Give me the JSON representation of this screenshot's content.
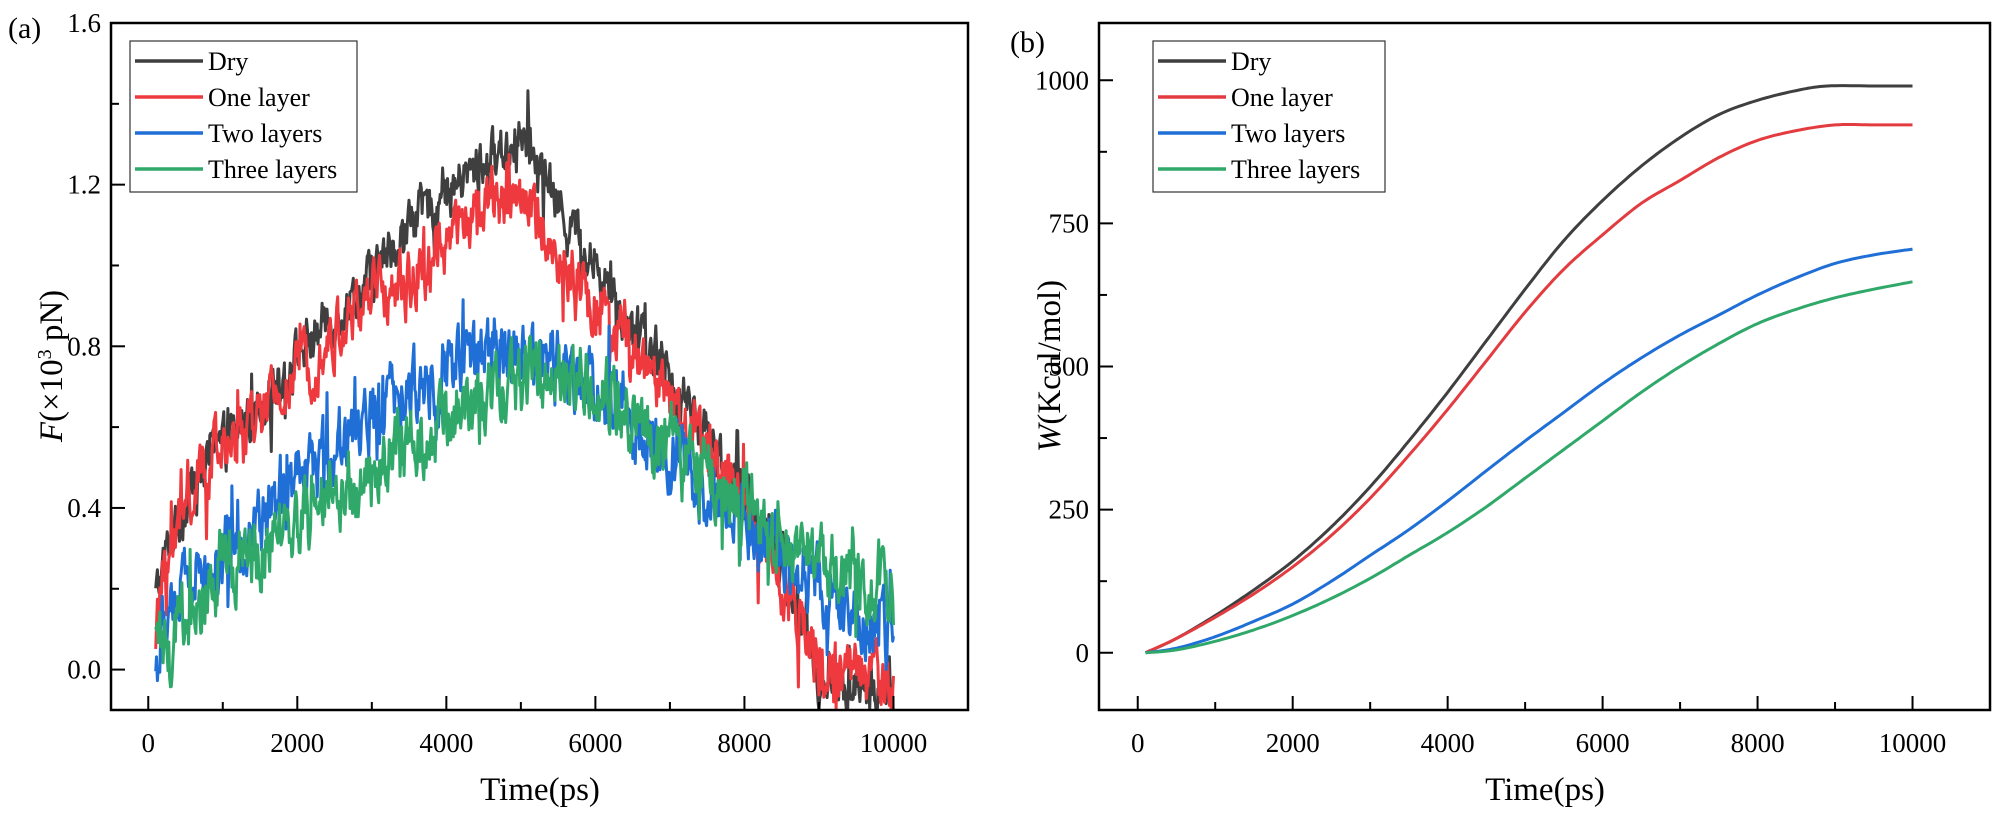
{
  "chart_data": [
    {
      "panel_label": "(a)",
      "type": "line",
      "title": "",
      "xlabel": "Time(ps)",
      "ylabel_italic": "F",
      "ylabel_rest": "(×10",
      "ylabel_sup": "3",
      "ylabel_end": " pN)",
      "xlim": [
        -500,
        11000
      ],
      "ylim": [
        -0.1,
        1.6
      ],
      "xticks": [
        0,
        2000,
        4000,
        6000,
        8000,
        10000
      ],
      "xtick_labels": [
        "0",
        "2000",
        "4000",
        "6000",
        "8000",
        "10000"
      ],
      "xminor": [
        1000,
        3000,
        5000,
        7000,
        9000
      ],
      "yticks": [
        0.0,
        0.4,
        0.8,
        1.2,
        1.6
      ],
      "ytick_labels": [
        "0.0",
        "0.4",
        "0.8",
        "1.2",
        "1.6"
      ],
      "yminor": [
        0.2,
        0.6,
        1.0,
        1.4
      ],
      "grid": false,
      "legend_position": "top-left",
      "noisy": true,
      "series": [
        {
          "name": "Dry",
          "color": "#3f3f3f",
          "noise": 0.05,
          "x": [
            100,
            300,
            600,
            1000,
            1500,
            2000,
            2500,
            3000,
            3500,
            4000,
            4500,
            5000,
            5500,
            6000,
            6500,
            7000,
            7500,
            8000,
            8500,
            8900,
            9000,
            9500,
            10000
          ],
          "y": [
            0.18,
            0.33,
            0.45,
            0.55,
            0.66,
            0.78,
            0.88,
            0.97,
            1.1,
            1.18,
            1.25,
            1.32,
            1.15,
            1.0,
            0.85,
            0.72,
            0.58,
            0.42,
            0.25,
            0.05,
            -0.03,
            -0.05,
            -0.06
          ]
        },
        {
          "name": "One layer",
          "color": "#ee3a3f",
          "noise": 0.06,
          "x": [
            100,
            300,
            600,
            1000,
            1500,
            2000,
            2500,
            3000,
            3500,
            4000,
            4500,
            5000,
            5500,
            6000,
            6500,
            7000,
            7500,
            8000,
            8500,
            9000,
            9500,
            10000
          ],
          "y": [
            0.1,
            0.3,
            0.45,
            0.54,
            0.62,
            0.73,
            0.82,
            0.93,
            0.95,
            1.05,
            1.15,
            1.18,
            1.02,
            0.9,
            0.78,
            0.65,
            0.55,
            0.4,
            0.22,
            0.02,
            -0.01,
            -0.03
          ]
        },
        {
          "name": "Two layers",
          "color": "#1f6fd6",
          "noise": 0.07,
          "x": [
            100,
            300,
            600,
            1000,
            1500,
            2000,
            2500,
            3000,
            3500,
            4000,
            4500,
            5000,
            5500,
            6000,
            6500,
            7000,
            7500,
            8000,
            8500,
            9000,
            9500,
            10000
          ],
          "y": [
            0.0,
            0.18,
            0.22,
            0.28,
            0.36,
            0.45,
            0.55,
            0.63,
            0.68,
            0.75,
            0.8,
            0.8,
            0.76,
            0.7,
            0.62,
            0.52,
            0.45,
            0.38,
            0.3,
            0.22,
            0.12,
            0.08
          ]
        },
        {
          "name": "Three layers",
          "color": "#2fa86a",
          "noise": 0.07,
          "x": [
            100,
            300,
            600,
            1000,
            1500,
            2000,
            2500,
            3000,
            3500,
            4000,
            4500,
            5000,
            5500,
            6000,
            6500,
            7000,
            7500,
            8000,
            8500,
            9000,
            9500,
            10000
          ],
          "y": [
            0.02,
            0.08,
            0.15,
            0.23,
            0.3,
            0.36,
            0.42,
            0.48,
            0.55,
            0.62,
            0.68,
            0.72,
            0.74,
            0.7,
            0.63,
            0.55,
            0.48,
            0.4,
            0.33,
            0.27,
            0.22,
            0.18
          ]
        }
      ]
    },
    {
      "panel_label": "(b)",
      "type": "line",
      "title": "",
      "xlabel": "Time(ps)",
      "ylabel_italic": "W",
      "ylabel_rest": "(Kcal/mol)",
      "ylabel_sup": "",
      "ylabel_end": "",
      "xlim": [
        -500,
        11000
      ],
      "ylim": [
        -100,
        1100
      ],
      "xticks": [
        0,
        2000,
        4000,
        6000,
        8000,
        10000
      ],
      "xtick_labels": [
        "0",
        "2000",
        "4000",
        "6000",
        "8000",
        "10000"
      ],
      "xminor": [
        1000,
        3000,
        5000,
        7000,
        9000
      ],
      "yticks": [
        0,
        250,
        500,
        750,
        1000
      ],
      "ytick_labels": [
        "0",
        "250",
        "500",
        "750",
        "1000"
      ],
      "yminor": [
        125,
        375,
        625,
        875
      ],
      "grid": false,
      "legend_position": "top-left",
      "noisy": false,
      "series": [
        {
          "name": "Dry",
          "color": "#3f3f3f",
          "x": [
            100,
            500,
            1000,
            1500,
            2000,
            2500,
            3000,
            3500,
            4000,
            4500,
            5000,
            5500,
            6000,
            6500,
            7000,
            7500,
            8000,
            8500,
            8900,
            9500,
            10000
          ],
          "y": [
            0,
            25,
            65,
            110,
            160,
            220,
            290,
            370,
            455,
            545,
            635,
            720,
            790,
            850,
            900,
            940,
            965,
            982,
            990,
            990,
            990
          ]
        },
        {
          "name": "One layer",
          "color": "#e33c40",
          "x": [
            100,
            500,
            1000,
            1500,
            2000,
            2500,
            3000,
            3500,
            4000,
            4500,
            5000,
            5500,
            6000,
            6500,
            7000,
            7500,
            8000,
            8500,
            9000,
            9500,
            10000
          ],
          "y": [
            0,
            25,
            62,
            103,
            150,
            205,
            270,
            345,
            425,
            510,
            595,
            670,
            730,
            785,
            825,
            865,
            895,
            912,
            922,
            922,
            922
          ]
        },
        {
          "name": "Two layers",
          "color": "#1f6fd6",
          "x": [
            100,
            500,
            1000,
            1500,
            2000,
            2500,
            3000,
            3500,
            4000,
            4500,
            5000,
            5500,
            6000,
            6500,
            7000,
            7500,
            8000,
            8500,
            9000,
            9500,
            10000
          ],
          "y": [
            0,
            8,
            28,
            55,
            85,
            125,
            170,
            215,
            265,
            318,
            370,
            420,
            470,
            515,
            555,
            590,
            625,
            655,
            680,
            695,
            705
          ]
        },
        {
          "name": "Three layers",
          "color": "#2fa86a",
          "x": [
            100,
            500,
            1000,
            1500,
            2000,
            2500,
            3000,
            3500,
            4000,
            4500,
            5000,
            5500,
            6000,
            6500,
            7000,
            7500,
            8000,
            8500,
            9000,
            9500,
            10000
          ],
          "y": [
            0,
            5,
            20,
            40,
            65,
            95,
            130,
            170,
            210,
            255,
            305,
            355,
            405,
            455,
            500,
            540,
            575,
            600,
            620,
            635,
            648
          ]
        }
      ]
    }
  ]
}
